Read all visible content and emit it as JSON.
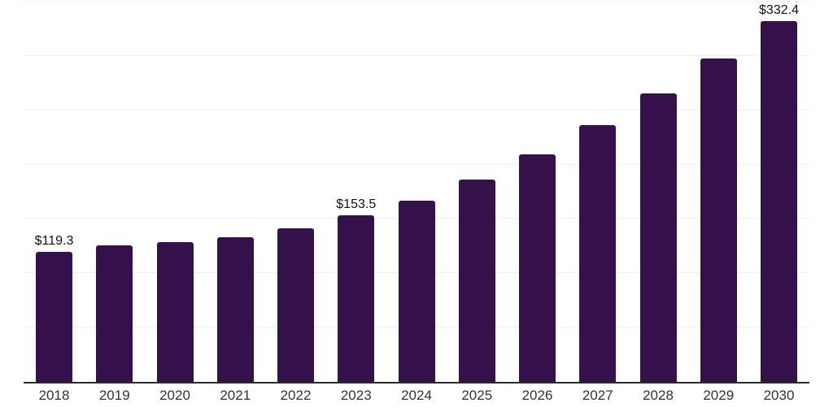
{
  "chart_data": {
    "type": "bar",
    "title": "",
    "xlabel": "",
    "ylabel": "",
    "categories": [
      "2018",
      "2019",
      "2020",
      "2021",
      "2022",
      "2023",
      "2024",
      "2025",
      "2026",
      "2027",
      "2028",
      "2029",
      "2030"
    ],
    "values": [
      119.3,
      126.0,
      128.6,
      133.4,
      141.6,
      153.5,
      167.0,
      186.5,
      209.4,
      236.5,
      265.3,
      297.7,
      332.4
    ],
    "data_labels": {
      "2018": "$119.3",
      "2023": "$153.5",
      "2030": "$332.4"
    },
    "ylim": [
      0,
      350
    ],
    "gridline_interval": 50,
    "grid": "horizontal",
    "y_tick_labels": "none",
    "legend": "none",
    "bar_color": "#35114C"
  },
  "colors": {
    "background": "#ffffff",
    "gridline": "#f0f0f0",
    "axis_line": "#2b2b2b",
    "value_label": "#111111",
    "tick_label": "#333333"
  }
}
